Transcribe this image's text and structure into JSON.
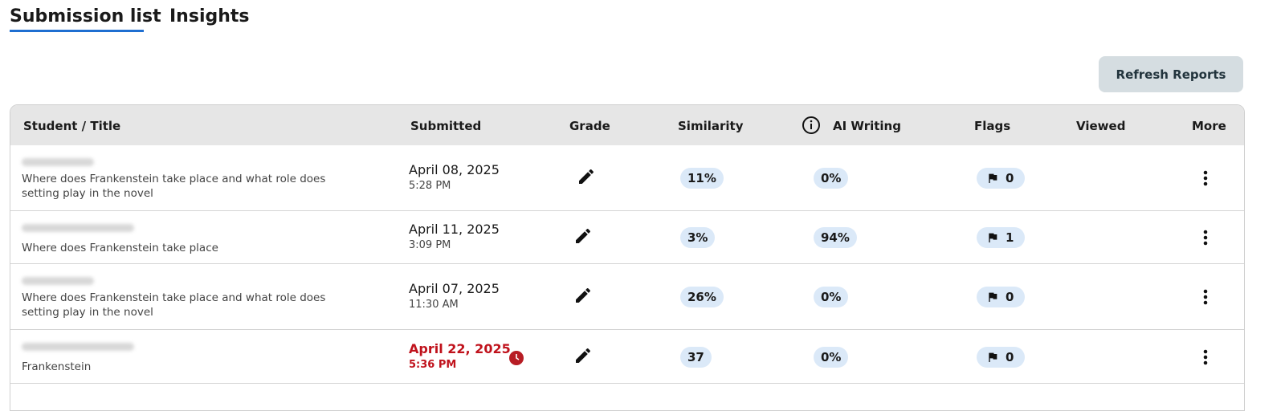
{
  "tabs": [
    "Submission list",
    "Insights"
  ],
  "button": "Refresh Reports",
  "table": {
    "headers": [
      "Student / Title",
      "Submitted",
      "Grade",
      "Similarity",
      "AI Writing",
      "Flags",
      "Viewed",
      "More"
    ],
    "rows": [
      {
        "title": "Where does Frankenstein take place and what role does setting play in the novel",
        "date": "April 08, 2025",
        "time": "5:28 PM",
        "similarity": "11%",
        "ai_writing": "0%",
        "flags": 0,
        "late": false
      },
      {
        "title": "Where does Frankenstein take place",
        "date": "April 11, 2025",
        "time": "3:09 PM",
        "similarity": "3%",
        "ai_writing": "94%",
        "flags": 1,
        "late": false
      },
      {
        "title": "Where does Frankenstein take place and what role does setting play in the novel",
        "date": "April 07, 2025",
        "time": "11:30 AM",
        "similarity": "26%",
        "ai_writing": "0%",
        "flags": 0,
        "late": false
      },
      {
        "title": "Frankenstein",
        "date": "April 22, 2025",
        "time": "5:36 PM",
        "similarity": "37",
        "ai_writing": "0%",
        "flags": 0,
        "late": true
      }
    ]
  }
}
